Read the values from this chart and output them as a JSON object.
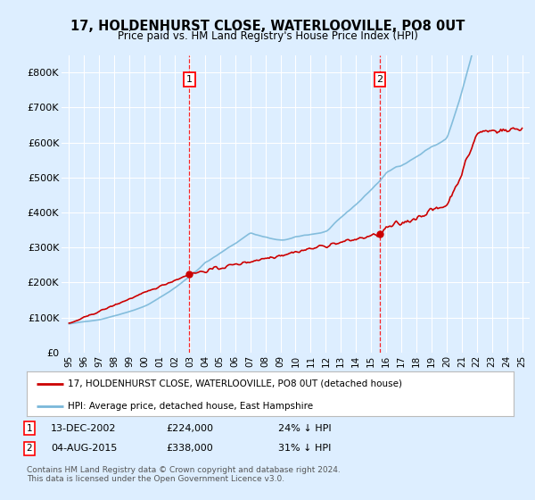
{
  "title": "17, HOLDENHURST CLOSE, WATERLOOVILLE, PO8 0UT",
  "subtitle": "Price paid vs. HM Land Registry's House Price Index (HPI)",
  "bg_color": "#ddeeff",
  "plot_bg_color": "#ddeeff",
  "grid_color": "#ffffff",
  "hpi_color": "#7ab8d9",
  "price_color": "#cc0000",
  "marker_color": "#cc0000",
  "ylim": [
    0,
    850000
  ],
  "yticks": [
    0,
    100000,
    200000,
    300000,
    400000,
    500000,
    600000,
    700000,
    800000
  ],
  "sale1_x": 2002.96,
  "sale1_y": 224000,
  "sale2_x": 2015.58,
  "sale2_y": 338000,
  "legend_line1": "17, HOLDENHURST CLOSE, WATERLOOVILLE, PO8 0UT (detached house)",
  "legend_line2": "HPI: Average price, detached house, East Hampshire",
  "footer": "Contains HM Land Registry data © Crown copyright and database right 2024.\nThis data is licensed under the Open Government Licence v3.0.",
  "xlim_start": 1994.5,
  "xlim_end": 2025.5
}
